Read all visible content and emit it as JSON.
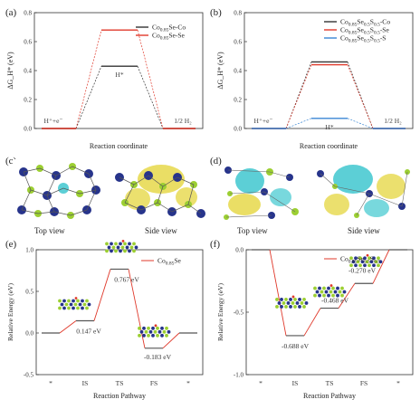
{
  "panels": {
    "a": "(a)",
    "b": "(b)",
    "c": "(c)",
    "d": "(d)",
    "e": "(e)",
    "f": "(f)"
  },
  "captions": {
    "c_top": "Top view",
    "c_side": "Side view",
    "d_top": "Top view",
    "d_side": "Side view"
  },
  "chart_data": [
    {
      "id": "a",
      "type": "line",
      "ylabel": "ΔG_H* (eV)",
      "xlabel": "Reaction coordinate",
      "ylim": [
        0,
        0.8
      ],
      "yticks": [
        "0.0",
        "0.2",
        "0.4",
        "0.6",
        "0.8"
      ],
      "states": [
        "H⁺+e⁻",
        "H*",
        "1/2 H₂"
      ],
      "series": [
        {
          "name": "Co0.85Se-Co",
          "color": "#333333",
          "values": [
            0,
            0.43,
            0
          ]
        },
        {
          "name": "Co0.85Se-Se",
          "color": "#e0392b",
          "values": [
            0,
            0.68,
            0
          ]
        }
      ]
    },
    {
      "id": "b",
      "type": "line",
      "ylabel": "ΔG_H* (eV)",
      "xlabel": "Reaction coordinate",
      "ylim": [
        0,
        0.8
      ],
      "yticks": [
        "0.0",
        "0.2",
        "0.4",
        "0.6",
        "0.8"
      ],
      "states": [
        "H⁺+e⁻",
        "H*",
        "1/2 H₂"
      ],
      "series": [
        {
          "name": "Co0.85Se0.5S0.5-Co",
          "color": "#333333",
          "values": [
            0,
            0.46,
            0
          ]
        },
        {
          "name": "Co0.85Se0.5S0.5-Se",
          "color": "#e0392b",
          "values": [
            0,
            0.44,
            0
          ]
        },
        {
          "name": "Co0.85Se0.5S0.5-S",
          "color": "#3a86d4",
          "values": [
            0,
            0.07,
            0
          ]
        }
      ]
    },
    {
      "id": "e",
      "type": "line",
      "ylabel": "Relative Energy (eV)",
      "xlabel": "Reaction Pathway",
      "ylim": [
        -0.5,
        1.0
      ],
      "yticks": [
        "-0.5",
        "0.0",
        "0.5",
        "1.0"
      ],
      "xticks": [
        "*",
        "IS",
        "TS",
        "FS",
        "*"
      ],
      "series": [
        {
          "name": "Co0.85Se",
          "color": "#e0392b",
          "values": [
            0,
            0.147,
            0.767,
            -0.183,
            0
          ]
        }
      ],
      "annotations": [
        "0.147 eV",
        "0.767 eV",
        "-0.183 eV"
      ]
    },
    {
      "id": "f",
      "type": "line",
      "ylabel": "Relative Energy (eV)",
      "xlabel": "Reaction Pathway",
      "ylim": [
        -1.0,
        0.0
      ],
      "yticks": [
        "-1.0",
        "-0.5",
        "0.0"
      ],
      "xticks": [
        "*",
        "IS",
        "TS",
        "FS",
        "*"
      ],
      "series": [
        {
          "name": "Co0.85Se0.5S0.5",
          "color": "#e0392b",
          "values": [
            0,
            -0.688,
            -0.468,
            -0.27,
            0
          ]
        }
      ],
      "annotations": [
        "-0.688 eV",
        "-0.468 eV",
        "-0.270 eV"
      ]
    }
  ]
}
